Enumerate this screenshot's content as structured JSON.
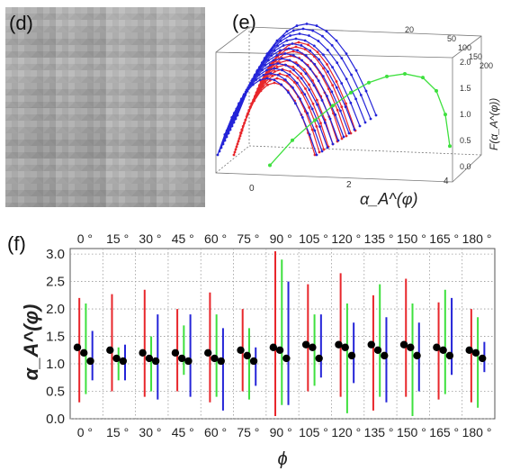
{
  "panels": {
    "d": {
      "label": "(d)"
    },
    "e": {
      "label": "(e)"
    },
    "f": {
      "label": "(f)"
    }
  },
  "colors": {
    "red": "#e8262b",
    "green": "#3ee03e",
    "blue": "#2424d8",
    "black": "#000000",
    "grid": "#999999"
  },
  "chart_data": [
    {
      "type": "scatter",
      "panel": "e",
      "xlabel": "α_A^(φ)",
      "zlabel": "F(α_A^(φ))",
      "x_ticks": [
        "0",
        "2",
        "4"
      ],
      "depth_ticks": [
        "20",
        "50",
        "100",
        "150",
        "200"
      ],
      "z_ticks": [
        "0.0",
        "0.5",
        "1.0",
        "1.5",
        "2.0"
      ],
      "series": [
        {
          "color": "green",
          "points": [
            [
              0.2,
              0.35
            ],
            [
              0.7,
              0.8
            ],
            [
              1.2,
              1.15
            ],
            [
              1.6,
              1.4
            ],
            [
              2.0,
              1.62
            ],
            [
              2.4,
              1.78
            ],
            [
              2.8,
              1.86
            ],
            [
              3.2,
              1.87
            ],
            [
              3.6,
              1.75
            ],
            [
              3.9,
              1.45
            ],
            [
              4.1,
              0.95
            ],
            [
              4.2,
              0.3
            ]
          ]
        }
      ]
    },
    {
      "type": "scatter",
      "panel": "f",
      "ylabel": "α_A^(φ)",
      "xlabel": "ϕ",
      "ylim": [
        0.0,
        3.1
      ],
      "yticks": [
        "0.0",
        "0.5",
        "1.0",
        "1.5",
        "2.0",
        "2.5",
        "3.0"
      ],
      "categories": [
        "0 °",
        "15 °",
        "30 °",
        "45 °",
        "60 °",
        "75 °",
        "90 °",
        "105 °",
        "120 °",
        "135 °",
        "150 °",
        "165 °",
        "180 °"
      ],
      "groups": [
        {
          "red": [
            0.3,
            2.2
          ],
          "green": [
            0.45,
            2.1
          ],
          "blue": [
            0.7,
            1.6
          ],
          "points": [
            1.3,
            1.2,
            1.05
          ]
        },
        {
          "red": [
            0.5,
            2.27
          ],
          "green": [
            0.7,
            1.3
          ],
          "blue": [
            0.7,
            1.35
          ],
          "points": [
            1.25,
            1.1,
            1.05
          ]
        },
        {
          "red": [
            0.4,
            2.35
          ],
          "green": [
            0.5,
            1.5
          ],
          "blue": [
            0.35,
            1.9
          ],
          "points": [
            1.2,
            1.1,
            1.05
          ]
        },
        {
          "red": [
            0.5,
            2.0
          ],
          "green": [
            0.8,
            1.7
          ],
          "blue": [
            0.4,
            1.9
          ],
          "points": [
            1.2,
            1.1,
            1.05
          ]
        },
        {
          "red": [
            0.3,
            2.3
          ],
          "green": [
            0.4,
            1.9
          ],
          "blue": [
            0.15,
            1.65
          ],
          "points": [
            1.2,
            1.1,
            1.05
          ]
        },
        {
          "red": [
            0.5,
            2.0
          ],
          "green": [
            0.35,
            1.65
          ],
          "blue": [
            0.6,
            1.3
          ],
          "points": [
            1.25,
            1.15,
            1.05
          ]
        },
        {
          "red": [
            0.05,
            3.05
          ],
          "green": [
            0.25,
            2.9
          ],
          "blue": [
            0.25,
            2.5
          ],
          "points": [
            1.3,
            1.25,
            1.1
          ]
        },
        {
          "red": [
            0.5,
            2.45
          ],
          "green": [
            0.6,
            1.9
          ],
          "blue": [
            0.75,
            1.9
          ],
          "points": [
            1.35,
            1.3,
            1.1
          ]
        },
        {
          "red": [
            0.4,
            2.65
          ],
          "green": [
            0.1,
            2.1
          ],
          "blue": [
            0.65,
            1.75
          ],
          "points": [
            1.35,
            1.3,
            1.15
          ]
        },
        {
          "red": [
            0.15,
            2.25
          ],
          "green": [
            0.4,
            2.45
          ],
          "blue": [
            0.3,
            1.85
          ],
          "points": [
            1.35,
            1.25,
            1.15
          ]
        },
        {
          "red": [
            0.4,
            2.55
          ],
          "green": [
            0.05,
            2.1
          ],
          "blue": [
            0.5,
            1.75
          ],
          "points": [
            1.35,
            1.3,
            1.15
          ]
        },
        {
          "red": [
            0.35,
            2.12
          ],
          "green": [
            0.45,
            2.35
          ],
          "blue": [
            0.8,
            2.2
          ],
          "points": [
            1.3,
            1.25,
            1.15
          ]
        },
        {
          "red": [
            0.3,
            2.0
          ],
          "green": [
            0.2,
            1.85
          ],
          "blue": [
            0.85,
            1.4
          ],
          "points": [
            1.25,
            1.2,
            1.1
          ]
        }
      ]
    }
  ]
}
